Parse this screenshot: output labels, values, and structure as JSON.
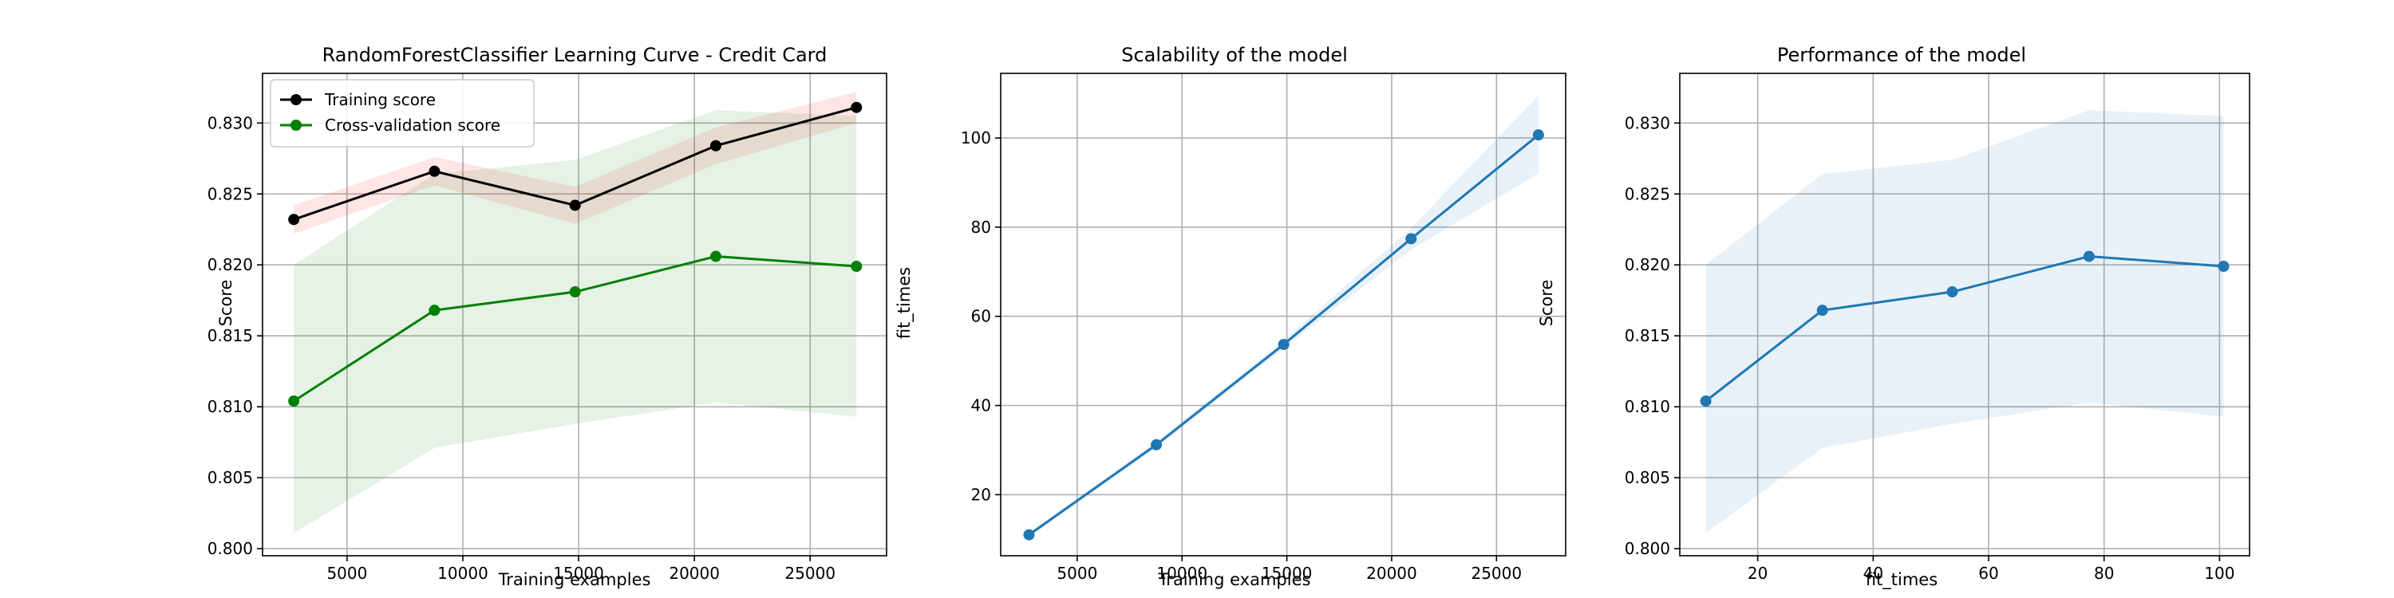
{
  "chart_data": [
    {
      "type": "line",
      "title": "RandomForestClassifier Learning Curve - Credit Card",
      "xlabel": "Training examples",
      "ylabel": "Score",
      "xlim": [
        1350,
        28300
      ],
      "ylim": [
        0.7995,
        0.8335
      ],
      "xticks": [
        5000,
        10000,
        15000,
        20000,
        25000
      ],
      "xtick_labels": [
        "5000",
        "10000",
        "15000",
        "20000",
        "25000"
      ],
      "yticks": [
        0.8,
        0.805,
        0.81,
        0.815,
        0.82,
        0.825,
        0.83
      ],
      "ytick_labels": [
        "0.800",
        "0.805",
        "0.810",
        "0.815",
        "0.820",
        "0.825",
        "0.830"
      ],
      "grid": true,
      "legend": "upper-left",
      "x": [
        2700,
        8775,
        14850,
        20925,
        27000
      ],
      "series": [
        {
          "name": "Training score",
          "color": "#000000",
          "band_color": "#ff0000",
          "values": [
            0.8232,
            0.8266,
            0.8242,
            0.8284,
            0.8311
          ],
          "lower": [
            0.8222,
            0.8256,
            0.8229,
            0.8271,
            0.83
          ],
          "upper": [
            0.8242,
            0.8276,
            0.8255,
            0.8297,
            0.8322
          ]
        },
        {
          "name": "Cross-validation score",
          "color": "#008000",
          "band_color": "#008000",
          "values": [
            0.8104,
            0.8168,
            0.8181,
            0.8206,
            0.8199
          ],
          "lower": [
            0.8011,
            0.8071,
            0.8088,
            0.8103,
            0.8093
          ],
          "upper": [
            0.82,
            0.8264,
            0.8274,
            0.8309,
            0.8305
          ]
        }
      ]
    },
    {
      "type": "line",
      "title": "Scalability of the model",
      "xlabel": "Training examples",
      "ylabel": "fit_times",
      "xlim": [
        1350,
        28300
      ],
      "ylim": [
        6.3,
        114.5
      ],
      "xticks": [
        5000,
        10000,
        15000,
        20000,
        25000
      ],
      "xtick_labels": [
        "5000",
        "10000",
        "15000",
        "20000",
        "25000"
      ],
      "yticks": [
        20,
        40,
        60,
        80,
        100
      ],
      "ytick_labels": [
        "20",
        "40",
        "60",
        "80",
        "100"
      ],
      "grid": true,
      "x": [
        2700,
        8775,
        14850,
        20925,
        27000
      ],
      "series": [
        {
          "name": "",
          "color": "#1f77b4",
          "band_color": "#1f77b4",
          "values": [
            11.0,
            31.2,
            53.7,
            77.4,
            100.7
          ],
          "lower": [
            10.5,
            30.5,
            52.8,
            75.0,
            92.0
          ],
          "upper": [
            11.5,
            31.9,
            54.6,
            79.8,
            109.5
          ]
        }
      ]
    },
    {
      "type": "line",
      "title": "Performance of the model",
      "xlabel": "fit_times",
      "ylabel": "Score",
      "xlim": [
        6.5,
        105.2
      ],
      "ylim": [
        0.7995,
        0.8335
      ],
      "xticks": [
        20,
        40,
        60,
        80,
        100
      ],
      "xtick_labels": [
        "20",
        "40",
        "60",
        "80",
        "100"
      ],
      "yticks": [
        0.8,
        0.805,
        0.81,
        0.815,
        0.82,
        0.825,
        0.83
      ],
      "ytick_labels": [
        "0.800",
        "0.805",
        "0.810",
        "0.815",
        "0.820",
        "0.825",
        "0.830"
      ],
      "grid": true,
      "x": [
        11.0,
        31.2,
        53.7,
        77.4,
        100.7
      ],
      "series": [
        {
          "name": "",
          "color": "#1f77b4",
          "band_color": "#1f77b4",
          "values": [
            0.8104,
            0.8168,
            0.8181,
            0.8206,
            0.8199
          ],
          "lower": [
            0.8011,
            0.8071,
            0.8088,
            0.8103,
            0.8093
          ],
          "upper": [
            0.82,
            0.8264,
            0.8274,
            0.8309,
            0.8305
          ]
        }
      ]
    }
  ]
}
